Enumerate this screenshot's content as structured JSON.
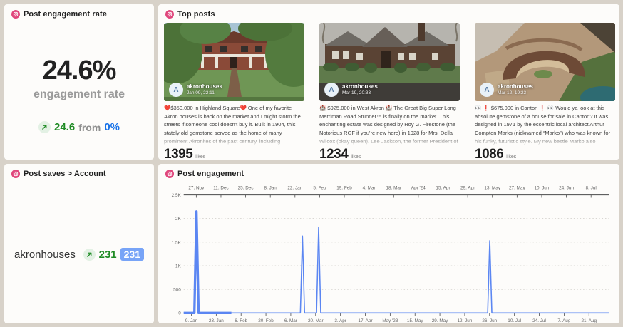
{
  "engagement_rate_panel": {
    "title": "Post engagement rate",
    "value": "24.6%",
    "value_label": "engagement rate",
    "change": {
      "value": "24.6",
      "from_word": "from",
      "baseline": "0%"
    }
  },
  "top_posts_panel": {
    "title": "Top posts",
    "likes_label": "likes",
    "posts": [
      {
        "avatar_letter": "A",
        "username": "akronhouses",
        "date": "Jan 09, 22:11",
        "caption": "❤️$350,000 in Highland Square❤️ One of my favorite Akron houses is back on the market and I might storm the streets if someone cool doesn't buy it. Built in 1904, this stately old gemstone served as the home of many prominent Akronites of the past century, including businessman John Edward Peterson and rubber exec George W. Sherman (at different times, but that would have been juicy if they lived together 😏). Highlights:",
        "likes": "1395"
      },
      {
        "avatar_letter": "A",
        "username": "akronhouses",
        "date": "Mar 19, 20:33",
        "caption": "🏰 $925,000 in West Akron 🏰 The Great Big Super Long Merriman Road Stunner™ is finally on the market. This enchanting estate was designed by Roy G. Firestone (the Notorious RGF if you're new here) in 1928 for Mrs. Della Wilcox (okay queen). Lee Jackson, the former President of Firestone Tire & Rubber Company, owned it at one point too. Talk about a real-deal Akron house. 🌞 I got to tour it recently and some unexpected highlights",
        "likes": "1234"
      },
      {
        "avatar_letter": "A",
        "username": "akronhouses",
        "date": "Mar 12, 19:23",
        "caption": "👀 ❗ $675,000 in Canton ❗ 👀 Would ya look at this absolute gemstone of a house for sale in Canton? It was designed in 1971 by the eccentric local architect Arthur Compton Marks (nicknamed “Marko”) who was known for his funky, futuristic style. My new bestie Marko also designed the very weird Jackie Lee's Mall in Coventry (iykyk) and the main branch of the Stark County Public Library. I'm in awe of this weirdo's work and the fact that",
        "likes": "1086"
      }
    ]
  },
  "post_saves_panel": {
    "title": "Post saves > Account",
    "account": "akronhouses",
    "change_value": "231",
    "badge_value": "231"
  },
  "post_engagement_panel": {
    "title": "Post engagement"
  },
  "icons": {
    "panel_icon": "instagram-icon",
    "change_icon": "arrow-up-right-icon"
  },
  "colors": {
    "instagram_pink": "#e0457b",
    "positive_green": "#1f8b24",
    "link_blue": "#1a73e8",
    "badge_blue": "#78a4f7",
    "chart_line": "#5b86f2"
  },
  "chart_data": {
    "type": "line",
    "title": "Post engagement",
    "ylim": [
      0,
      2500
    ],
    "grid": "dotted horizontal",
    "legend": "none",
    "y_ticks": [
      {
        "label": "2.5K",
        "value": 2500
      },
      {
        "label": "2K",
        "value": 2000
      },
      {
        "label": "1.5K",
        "value": 1500
      },
      {
        "label": "1K",
        "value": 1000
      },
      {
        "label": "500",
        "value": 500
      },
      {
        "label": "0",
        "value": 0
      }
    ],
    "top_axis_ticks": [
      "27. Nov",
      "11. Dec",
      "25. Dec",
      "8. Jan",
      "22. Jan",
      "5. Feb",
      "19. Feb",
      "4. Mar",
      "18. Mar",
      "Apr '24",
      "15. Apr",
      "29. Apr",
      "13. May",
      "27. May",
      "10. Jun",
      "24. Jun",
      "8. Jul"
    ],
    "bottom_axis_ticks": [
      "9. Jan",
      "23. Jan",
      "6. Feb",
      "20. Feb",
      "6. Mar",
      "20. Mar",
      "3. Apr",
      "17. Apr",
      "May '23",
      "15. May",
      "29. May",
      "12. Jun",
      "26. Jun",
      "10. Jul",
      "24. Jul",
      "7. Aug",
      "21. Aug"
    ],
    "baseline_value": 0,
    "spikes": [
      {
        "date": "9. Jan",
        "value": 2150,
        "t": 0.03
      },
      {
        "date": "13. Mar",
        "value": 1630,
        "t": 0.279
      },
      {
        "date": "20. Mar",
        "value": 1820,
        "t": 0.317
      },
      {
        "date": "24. Jun",
        "value": 1530,
        "t": 0.719
      }
    ],
    "highlight_segment_t": [
      0,
      0.112
    ]
  }
}
